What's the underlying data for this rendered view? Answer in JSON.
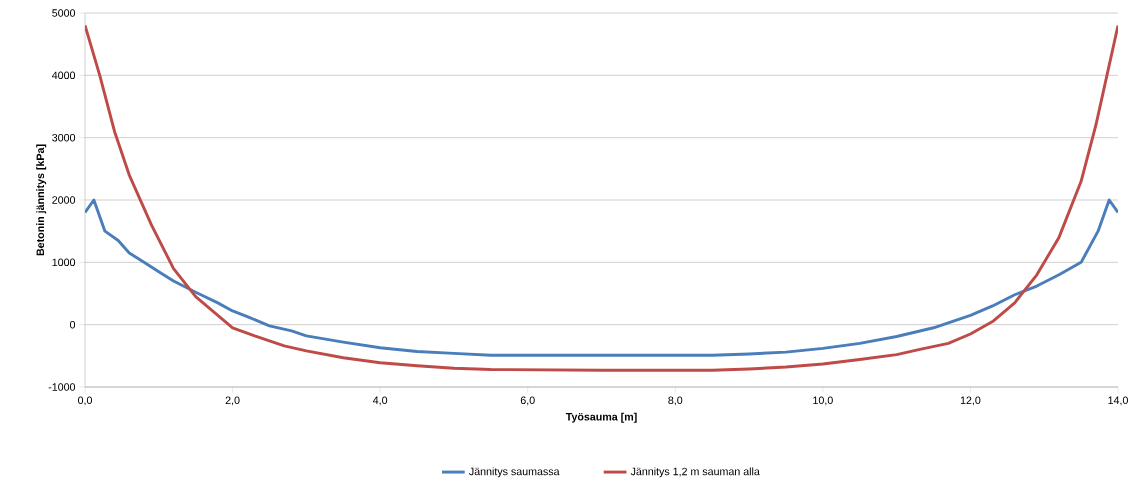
{
  "chart_data": {
    "type": "line",
    "xlabel": "Työsauma  [m]",
    "ylabel": "Betonin jännitys [kPa]",
    "series": [
      {
        "name": "Jännitys saumassa",
        "color": "#4a7ebb",
        "x": [
          0,
          0.12,
          0.27,
          0.45,
          0.6,
          0.8,
          1.0,
          1.2,
          1.5,
          1.8,
          2.0,
          2.2,
          2.5,
          2.8,
          3.0,
          3.5,
          4.0,
          4.5,
          5.0,
          5.5,
          7.0,
          8.5,
          9.0,
          9.5,
          10.0,
          10.5,
          11.0,
          11.5,
          11.8,
          12.0,
          12.3,
          12.6,
          12.9,
          13.2,
          13.5,
          13.73,
          13.88,
          14.0
        ],
        "values": [
          1800,
          2000,
          1500,
          1350,
          1150,
          1000,
          850,
          700,
          520,
          350,
          220,
          130,
          -20,
          -100,
          -180,
          -280,
          -370,
          -430,
          -460,
          -490,
          -490,
          -490,
          -470,
          -440,
          -380,
          -300,
          -190,
          -50,
          70,
          150,
          300,
          480,
          620,
          800,
          1000,
          1500,
          2000,
          1800
        ]
      },
      {
        "name": "Jännitys 1,2 m sauman alla",
        "color": "#be4b48",
        "x": [
          0,
          0.2,
          0.4,
          0.6,
          0.9,
          1.2,
          1.5,
          1.8,
          2.0,
          2.3,
          2.7,
          3.0,
          3.5,
          4.0,
          4.5,
          5.0,
          5.5,
          7.0,
          8.5,
          9.0,
          9.5,
          10.0,
          10.5,
          11.0,
          11.3,
          11.7,
          12.0,
          12.3,
          12.6,
          12.9,
          13.2,
          13.5,
          13.7,
          13.85,
          14.0
        ],
        "values": [
          4800,
          4000,
          3100,
          2400,
          1600,
          900,
          450,
          150,
          -50,
          -180,
          -340,
          -420,
          -530,
          -610,
          -660,
          -700,
          -720,
          -730,
          -730,
          -710,
          -680,
          -630,
          -560,
          -480,
          -400,
          -300,
          -150,
          50,
          350,
          800,
          1400,
          2300,
          3200,
          4000,
          4800
        ]
      }
    ],
    "xlim": [
      0,
      14
    ],
    "ylim": [
      -1000,
      5000
    ],
    "xticks": [
      {
        "value": 0,
        "label": "0,0"
      },
      {
        "value": 2,
        "label": "2,0"
      },
      {
        "value": 4,
        "label": "4,0"
      },
      {
        "value": 6,
        "label": "6,0"
      },
      {
        "value": 8,
        "label": "8,0"
      },
      {
        "value": 10,
        "label": "10,0"
      },
      {
        "value": 12,
        "label": "12,0"
      },
      {
        "value": 14,
        "label": "14,0"
      }
    ],
    "yticks": [
      -1000,
      0,
      1000,
      2000,
      3000,
      4000,
      5000
    ],
    "grid": "y",
    "legend": "bottom",
    "marker": "none",
    "line_style": "solid"
  }
}
